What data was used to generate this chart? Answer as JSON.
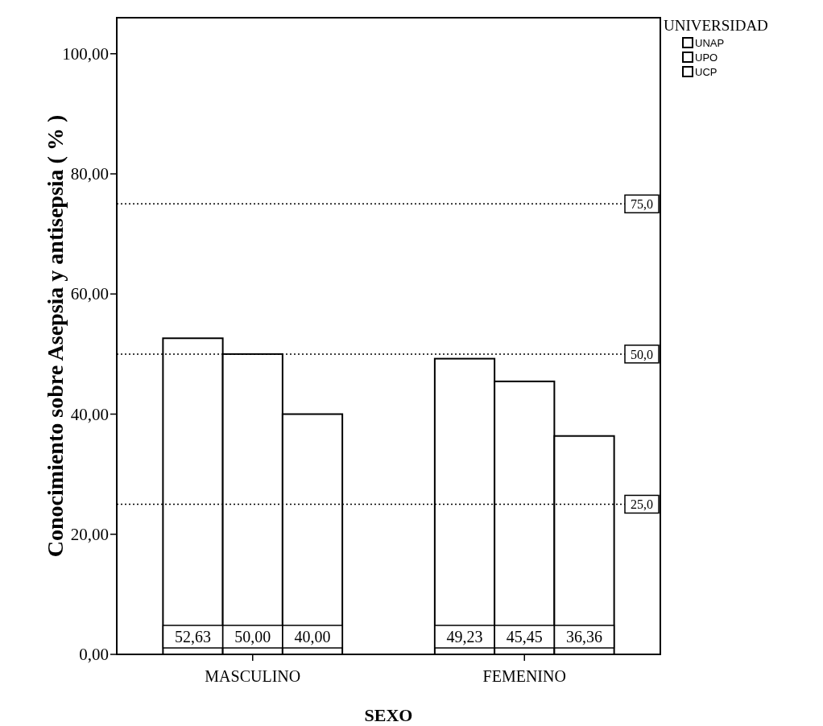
{
  "chart_data": {
    "type": "bar",
    "xlabel": "SEXO",
    "ylabel": "Conocimiento sobre Asepsia y antisepsia ( % )",
    "legend_title": "UNIVERSIDAD",
    "categories": [
      "MASCULINO",
      "FEMENINO"
    ],
    "series": [
      {
        "name": "UNAP",
        "color": "#ffffff",
        "values": [
          52.63,
          49.23
        ],
        "value_labels": [
          "52,63",
          "49,23"
        ]
      },
      {
        "name": "UPO",
        "color": "#ffffff",
        "values": [
          50.0,
          45.45
        ],
        "value_labels": [
          "50,00",
          "45,45"
        ]
      },
      {
        "name": "UCP",
        "color": "#ffffff",
        "values": [
          40.0,
          36.36
        ],
        "value_labels": [
          "40,00",
          "36,36"
        ]
      }
    ],
    "ylim": [
      0,
      106
    ],
    "yticks": [
      {
        "value": 0,
        "label": "0,00"
      },
      {
        "value": 20,
        "label": "20,00"
      },
      {
        "value": 40,
        "label": "40,00"
      },
      {
        "value": 60,
        "label": "60,00"
      },
      {
        "value": 80,
        "label": "80,00"
      },
      {
        "value": 100,
        "label": "100,00"
      }
    ],
    "ref_lines": [
      {
        "axis": "y",
        "value": 75,
        "label": "75,0",
        "line_style": "dotted"
      },
      {
        "axis": "y",
        "value": 50,
        "label": "50,0",
        "line_style": "dotted"
      },
      {
        "axis": "y",
        "value": 25,
        "label": "25,0",
        "line_style": "dotted"
      }
    ],
    "legend": "top right",
    "grid": false
  }
}
